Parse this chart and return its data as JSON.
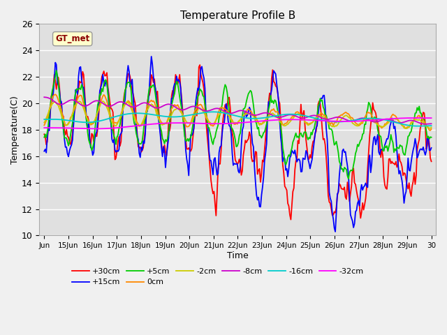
{
  "title": "Temperature Profile B",
  "xlabel": "Time",
  "ylabel": "Temperature(C)",
  "ylim": [
    10,
    26
  ],
  "yticks": [
    10,
    12,
    14,
    16,
    18,
    20,
    22,
    24,
    26
  ],
  "xtick_labels": [
    "Jun",
    "15Jun",
    "16Jun",
    "17Jun",
    "18Jun",
    "19Jun",
    "20Jun",
    "21Jun",
    "22Jun",
    "23Jun",
    "24Jun",
    "25Jun",
    "26Jun",
    "27Jun",
    "28Jun",
    "29Jun",
    "30"
  ],
  "series_labels": [
    "+30cm",
    "+15cm",
    "+5cm",
    "0cm",
    "-2cm",
    "-8cm",
    "-16cm",
    "-32cm"
  ],
  "series_colors": [
    "#ff0000",
    "#0000ff",
    "#00cc00",
    "#ff8800",
    "#cccc00",
    "#cc00cc",
    "#00cccc",
    "#ff00ff"
  ],
  "legend_label": "GT_met",
  "bg_color": "#e0e0e0",
  "grid_color": "#ffffff",
  "ann_box_color": "#ffffcc",
  "ann_text_color": "#8b0000",
  "fig_bg": "#f0f0f0"
}
